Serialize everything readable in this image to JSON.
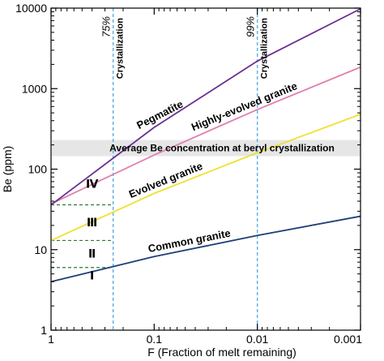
{
  "chart_data": {
    "type": "line",
    "title": "",
    "xlabel": "F (Fraction of melt remaining)",
    "ylabel": "Be (ppm)",
    "x_scale": "log",
    "x_reversed": true,
    "y_scale": "log",
    "xlim": [
      1,
      0.001
    ],
    "ylim": [
      1,
      10000
    ],
    "x_tick_labels": [
      "1",
      "0.1",
      "0.01",
      "0.001"
    ],
    "y_tick_labels": [
      "1",
      "10",
      "100",
      "1000",
      "10000"
    ],
    "grid": false,
    "series": [
      {
        "name": "Common granite",
        "color": "#1f3f7a",
        "label_x": 0.045,
        "label_angle": -11,
        "points": [
          [
            1,
            4
          ],
          [
            0.1,
            8.2
          ],
          [
            0.01,
            15
          ],
          [
            0.001,
            26
          ]
        ]
      },
      {
        "name": "Evolved granite",
        "color": "#f0e030",
        "label_x": 0.075,
        "label_angle": -22,
        "points": [
          [
            1,
            13
          ],
          [
            0.1,
            50
          ],
          [
            0.01,
            160
          ],
          [
            0.001,
            480
          ]
        ]
      },
      {
        "name": "Highly-evolved granite",
        "color": "#e080b0",
        "label_x": 0.013,
        "label_angle": -22,
        "points": [
          [
            1,
            37
          ],
          [
            0.1,
            150
          ],
          [
            0.01,
            550
          ],
          [
            0.001,
            1850
          ]
        ]
      },
      {
        "name": "Pegmatite",
        "color": "#6a3090",
        "label_x": 0.085,
        "label_angle": -27,
        "points": [
          [
            1,
            36
          ],
          [
            0.1,
            330
          ],
          [
            0.01,
            2200
          ],
          [
            0.001,
            9800
          ]
        ]
      }
    ],
    "vertical_lines": [
      {
        "x": 0.25,
        "color": "#55b0e0",
        "label": "Crystallization",
        "percent": "75%"
      },
      {
        "x": 0.01,
        "color": "#55b0e0",
        "label": "Crystallization",
        "percent": "99%"
      }
    ],
    "band": {
      "y_low": 145,
      "y_high": 230,
      "color": "#e6e6e6",
      "label": "Average Be concentration at beryl crystallization"
    },
    "dashed_levels": [
      {
        "y": 6,
        "to_x": 0.25,
        "color": "#2f7a3a"
      },
      {
        "y": 13,
        "to_x": 0.25,
        "color": "#2f7a3a"
      },
      {
        "y": 36,
        "to_x": 0.25,
        "color": "#2f7a3a"
      }
    ],
    "roman_labels": [
      {
        "text": "Ⅰ",
        "x": 0.4,
        "y": 4.8
      },
      {
        "text": "Ⅱ",
        "x": 0.4,
        "y": 9.0
      },
      {
        "text": "Ⅲ",
        "x": 0.4,
        "y": 22
      },
      {
        "text": "Ⅳ",
        "x": 0.4,
        "y": 66
      }
    ]
  }
}
